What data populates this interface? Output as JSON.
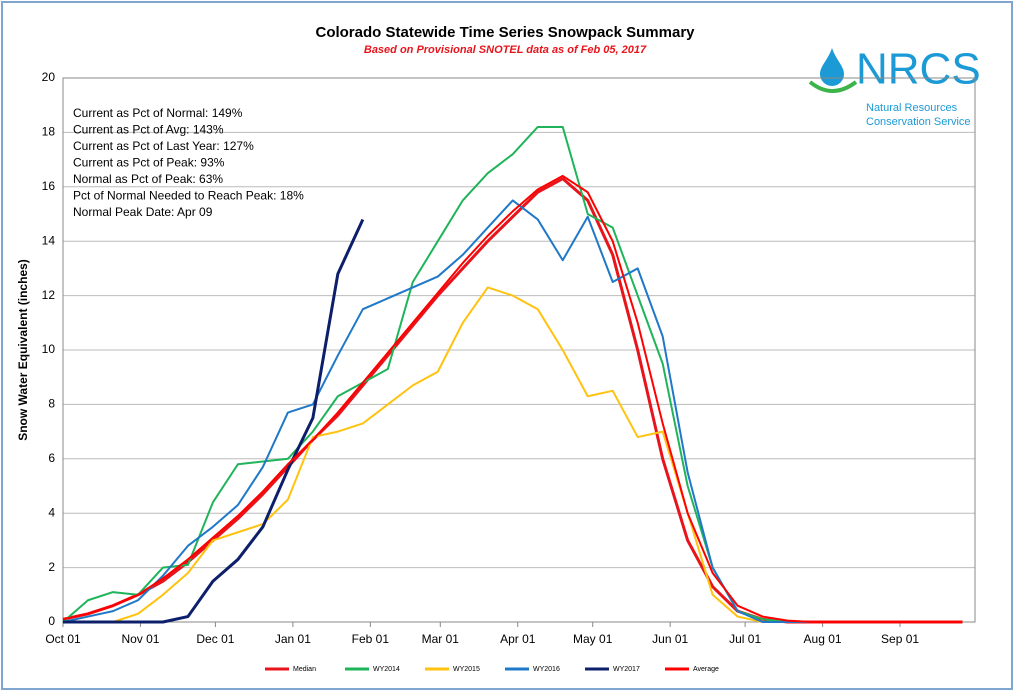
{
  "chart_data": {
    "type": "line",
    "title": "Colorado Statewide Time Series Snowpack Summary",
    "subtitle": "Based on Provisional SNOTEL data as of Feb 05, 2017",
    "ylabel": "Snow Water Equivalent (inches)",
    "annotations": [
      "Current  as Pct of Normal: 149%",
      "Current  as Pct of Avg: 143%",
      "Current  as Pct of Last Year: 127%",
      "Current  as Pct of Peak: 93%",
      "Normal  as Pct of Peak: 63%",
      "Pct of Normal Needed  to Reach Peak: 18%",
      "Normal Peak Date: Apr 09"
    ],
    "logo": {
      "name": "NRCS",
      "line1": "Natural Resources",
      "line2": "Conservation Service"
    },
    "x": [
      0,
      10,
      20,
      30,
      40,
      50,
      60,
      70,
      80,
      90,
      100,
      110,
      120,
      130,
      140,
      150,
      160,
      170,
      180,
      190,
      200,
      210,
      220,
      230,
      240,
      250,
      260,
      270,
      280,
      290,
      300,
      310,
      320,
      330,
      340,
      350,
      360
    ],
    "xlim": [
      0,
      365
    ],
    "xticks": [
      {
        "value": 0,
        "label": "Oct 01"
      },
      {
        "value": 31,
        "label": "Nov 01"
      },
      {
        "value": 61,
        "label": "Dec 01"
      },
      {
        "value": 92,
        "label": "Jan 01"
      },
      {
        "value": 123,
        "label": "Feb 01"
      },
      {
        "value": 151,
        "label": "Mar 01"
      },
      {
        "value": 182,
        "label": "Apr 01"
      },
      {
        "value": 212,
        "label": "May 01"
      },
      {
        "value": 243,
        "label": "Jun 01"
      },
      {
        "value": 273,
        "label": "Jul 01"
      },
      {
        "value": 304,
        "label": "Aug 01"
      },
      {
        "value": 335,
        "label": "Sep 01"
      }
    ],
    "ylim": [
      0,
      20
    ],
    "yticks": [
      0,
      2,
      4,
      6,
      8,
      10,
      12,
      14,
      16,
      18,
      20
    ],
    "grid": true,
    "series": [
      {
        "name": "Median",
        "color": "#e8141c",
        "width": 3,
        "values": [
          0.1,
          0.3,
          0.6,
          1.0,
          1.5,
          2.2,
          3.0,
          3.8,
          4.7,
          5.7,
          6.7,
          7.6,
          8.7,
          9.8,
          10.9,
          12.0,
          13.0,
          14.0,
          14.9,
          15.8,
          16.3,
          15.5,
          13.5,
          10.0,
          6.0,
          3.0,
          1.3,
          0.4,
          0.1,
          0,
          0,
          0,
          0,
          0,
          0,
          0,
          0
        ]
      },
      {
        "name": "WY2014",
        "color": "#1fb45a",
        "width": 2,
        "values": [
          0,
          0.8,
          1.1,
          1.0,
          2.0,
          2.1,
          4.4,
          5.8,
          5.9,
          6.0,
          7.0,
          8.3,
          8.8,
          9.3,
          12.5,
          14.0,
          15.5,
          16.5,
          17.2,
          18.2,
          18.2,
          15.0,
          14.5,
          12.0,
          9.5,
          5.0,
          2.0,
          0.4,
          0.1,
          0,
          0,
          0,
          0,
          0,
          0,
          0,
          0
        ]
      },
      {
        "name": "WY2015",
        "color": "#ffc20e",
        "width": 2,
        "values": [
          0,
          0,
          0,
          0.3,
          1.0,
          1.8,
          3.0,
          3.3,
          3.6,
          4.5,
          6.8,
          7.0,
          7.3,
          8.0,
          8.7,
          9.2,
          11.0,
          12.3,
          12.0,
          11.5,
          10.0,
          8.3,
          8.5,
          6.8,
          7.0,
          4.0,
          1.0,
          0.2,
          0,
          0,
          0,
          0,
          0,
          0,
          0,
          0,
          0
        ]
      },
      {
        "name": "WY2016",
        "color": "#1f78c8",
        "width": 2,
        "values": [
          0,
          0.2,
          0.4,
          0.8,
          1.7,
          2.8,
          3.5,
          4.3,
          5.7,
          7.7,
          8.0,
          9.8,
          11.5,
          11.9,
          12.3,
          12.7,
          13.5,
          14.5,
          15.5,
          14.8,
          13.3,
          14.9,
          12.5,
          13.0,
          10.5,
          5.5,
          2.0,
          0.4,
          0,
          0,
          0,
          0,
          0,
          0,
          0,
          0,
          0
        ]
      },
      {
        "name": "WY2017",
        "color": "#0d1f6b",
        "width": 3,
        "values": [
          0,
          0,
          0,
          0,
          0,
          0.2,
          1.5,
          2.3,
          3.5,
          5.6,
          7.5,
          12.8,
          14.8,
          null,
          null,
          null,
          null,
          null,
          null,
          null,
          null,
          null,
          null,
          null,
          null,
          null,
          null,
          null,
          null,
          null,
          null,
          null,
          null,
          null,
          null,
          null,
          null
        ]
      },
      {
        "name": "Average",
        "color": "#ff0000",
        "width": 2,
        "values": [
          0.1,
          0.3,
          0.6,
          1.0,
          1.6,
          2.3,
          3.1,
          3.9,
          4.8,
          5.8,
          6.7,
          7.7,
          8.8,
          9.9,
          11.0,
          12.1,
          13.2,
          14.2,
          15.1,
          15.9,
          16.4,
          15.8,
          14.0,
          11.0,
          7.3,
          4.0,
          1.8,
          0.6,
          0.2,
          0.05,
          0,
          0,
          0,
          0,
          0,
          0,
          0
        ]
      }
    ]
  }
}
